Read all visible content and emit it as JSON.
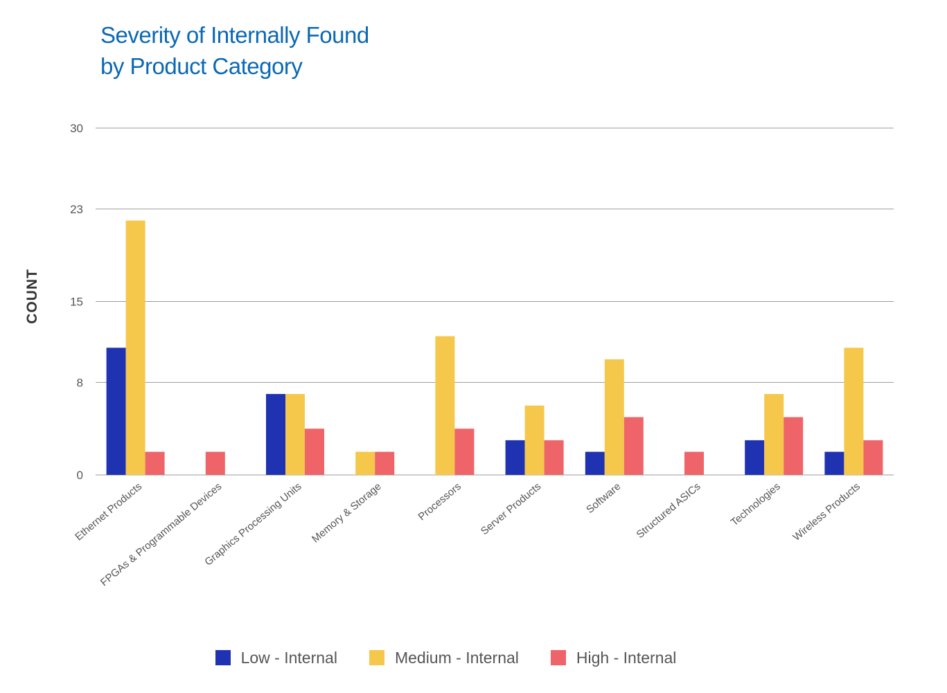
{
  "title_lines": [
    "Severity of Internally Found",
    "by Product Category"
  ],
  "chart_data": {
    "type": "bar",
    "title": "Severity of Internally Found by Product Category",
    "ylabel": "COUNT",
    "xlabel": "",
    "ylim": [
      0,
      30
    ],
    "yticks": [
      0,
      8,
      15,
      23,
      30
    ],
    "grid": true,
    "legend_position": "bottom",
    "categories": [
      "Ethernet Products",
      "FPGAs & Programmable Devices",
      "Graphics Processing Units",
      "Memory & Storage",
      "Processors",
      "Server Products",
      "Software",
      "Structured ASICs",
      "Technologies",
      "Wireless Products"
    ],
    "series": [
      {
        "name": "Low - Internal",
        "color": "#1f32b1",
        "values": [
          11,
          0,
          7,
          0,
          0,
          3,
          2,
          0,
          3,
          2
        ]
      },
      {
        "name": "Medium - Internal",
        "color": "#f5c84b",
        "values": [
          22,
          0,
          7,
          2,
          12,
          6,
          10,
          0,
          7,
          11
        ]
      },
      {
        "name": "High - Internal",
        "color": "#ee6468",
        "values": [
          2,
          2,
          4,
          2,
          4,
          3,
          5,
          2,
          5,
          3
        ]
      }
    ]
  }
}
